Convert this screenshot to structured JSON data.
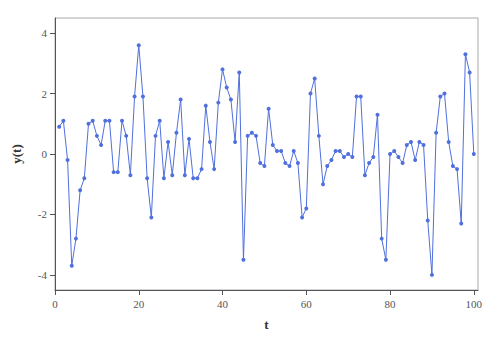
{
  "chart_data": {
    "type": "line",
    "x": [
      1,
      2,
      3,
      4,
      5,
      6,
      7,
      8,
      9,
      10,
      11,
      12,
      13,
      14,
      15,
      16,
      17,
      18,
      19,
      20,
      21,
      22,
      23,
      24,
      25,
      26,
      27,
      28,
      29,
      30,
      31,
      32,
      33,
      34,
      35,
      36,
      37,
      38,
      39,
      40,
      41,
      42,
      43,
      44,
      45,
      46,
      47,
      48,
      49,
      50,
      51,
      52,
      53,
      54,
      55,
      56,
      57,
      58,
      59,
      60,
      61,
      62,
      63,
      64,
      65,
      66,
      67,
      68,
      69,
      70,
      71,
      72,
      73,
      74,
      75,
      76,
      77,
      78,
      79,
      80,
      81,
      82,
      83,
      84,
      85,
      86,
      87,
      88,
      89,
      90,
      91,
      92,
      93,
      94,
      95,
      96,
      97,
      98,
      99,
      100
    ],
    "values": [
      0.9,
      1.1,
      -0.2,
      -3.7,
      -2.8,
      -1.2,
      -0.8,
      1.0,
      1.1,
      0.6,
      0.3,
      1.1,
      1.1,
      -0.6,
      -0.6,
      1.1,
      0.6,
      -0.7,
      1.9,
      3.6,
      1.9,
      -0.8,
      -2.1,
      0.6,
      1.1,
      -0.8,
      0.4,
      -0.7,
      0.7,
      1.8,
      -0.7,
      0.5,
      -0.8,
      -0.8,
      -0.5,
      1.6,
      0.4,
      -0.5,
      1.7,
      2.8,
      2.2,
      1.8,
      0.4,
      2.7,
      -3.5,
      0.6,
      0.7,
      0.6,
      -0.3,
      -0.4,
      1.5,
      0.3,
      0.1,
      0.1,
      -0.3,
      -0.4,
      0.1,
      -0.3,
      -2.1,
      -1.8,
      2.0,
      2.5,
      0.6,
      -1.0,
      -0.4,
      -0.2,
      0.1,
      0.1,
      -0.1,
      0.0,
      -0.1,
      1.9,
      1.9,
      -0.7,
      -0.3,
      -0.1,
      1.3,
      -2.8,
      -3.5,
      0.0,
      0.1,
      -0.1,
      -0.3,
      0.3,
      0.4,
      -0.2,
      0.4,
      0.3,
      -2.2,
      -4.0,
      0.7,
      1.9,
      2.0,
      0.4,
      -0.4,
      -0.5,
      -2.3,
      3.3,
      2.7,
      0.0
    ],
    "xlabel": "t",
    "ylabel": "y(t)",
    "xlim": [
      0,
      101
    ],
    "ylim": [
      -4.5,
      4.5
    ],
    "xticks": [
      0,
      20,
      40,
      60,
      80,
      100
    ],
    "yticks": [
      -4,
      -2,
      0,
      2,
      4
    ],
    "marker": "circle",
    "grid": false
  }
}
